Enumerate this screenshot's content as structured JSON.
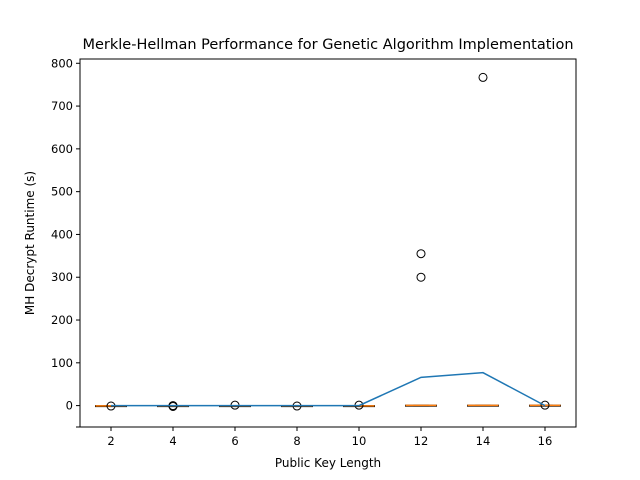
{
  "chart_data": {
    "type": "box",
    "title": "Merkle-Hellman Performance for Genetic Algorithm Implementation",
    "xlabel": "Public Key Length",
    "ylabel": "MH Decrypt Runtime (s)",
    "categories": [
      2,
      4,
      6,
      8,
      10,
      12,
      14,
      16
    ],
    "ylim": [
      -50,
      810
    ],
    "yticks": [
      0,
      100,
      200,
      300,
      400,
      500,
      600,
      700,
      800
    ],
    "boxes": [
      {
        "x": 2,
        "q1": -1,
        "median": -0.5,
        "q3": 0,
        "whislo": -1,
        "whishi": 0,
        "fliers": [
          -1
        ]
      },
      {
        "x": 4,
        "q1": -1,
        "median": -0.5,
        "q3": 0,
        "whislo": -1,
        "whishi": 0,
        "fliers": [
          -2,
          0
        ]
      },
      {
        "x": 6,
        "q1": -1,
        "median": -0.5,
        "q3": 0,
        "whislo": -1,
        "whishi": 0,
        "fliers": [
          1
        ]
      },
      {
        "x": 8,
        "q1": -1,
        "median": -0.5,
        "q3": 0,
        "whislo": -1,
        "whishi": 0,
        "fliers": [
          -1
        ]
      },
      {
        "x": 10,
        "q1": -1,
        "median": -0.5,
        "q3": 0,
        "whislo": -1,
        "whishi": 0,
        "fliers": [
          1
        ]
      },
      {
        "x": 12,
        "q1": -1,
        "median": 0.5,
        "q3": 1,
        "whislo": -1,
        "whishi": 1,
        "fliers": [
          300,
          355
        ]
      },
      {
        "x": 14,
        "q1": -0.5,
        "median": 0.5,
        "q3": 1,
        "whislo": -0.5,
        "whishi": 1,
        "fliers": [
          767
        ]
      },
      {
        "x": 16,
        "q1": -0.5,
        "median": 0.5,
        "q3": 1,
        "whislo": -0.5,
        "whishi": 1,
        "fliers": [
          1
        ]
      }
    ],
    "mean_line": {
      "x": [
        2,
        4,
        6,
        8,
        10,
        12,
        14,
        16
      ],
      "y": [
        0,
        0,
        0,
        0,
        0,
        66,
        77,
        0
      ]
    },
    "colors": {
      "median": "#ff7f0e",
      "mean_line": "#1f77b4",
      "box": "#000000",
      "flier": "#000000"
    }
  }
}
